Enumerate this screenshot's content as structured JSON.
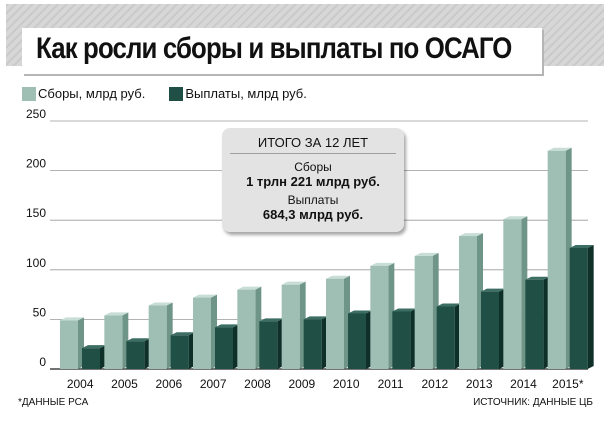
{
  "header": {
    "title": "Как росли сборы и выплаты по ОСАГО"
  },
  "legend": [
    {
      "label": "Сборы, млрд руб.",
      "color": "#9fbfb4"
    },
    {
      "label": "Выплаты, млрд руб.",
      "color": "#1f4f45"
    }
  ],
  "callout": {
    "heading": "ИТОГО ЗА 12 ЛЕТ",
    "label1": "Сборы",
    "value1": "1 трлн 221 млрд руб.",
    "label2": "Выплаты",
    "value2": "684,3 млрд руб."
  },
  "notes": {
    "left": "*ДАННЫЕ РСА",
    "right": "ИСТОЧНИК: ДАННЫЕ ЦБ"
  },
  "chart_data": {
    "type": "bar",
    "categories": [
      "2004",
      "2005",
      "2006",
      "2007",
      "2008",
      "2009",
      "2010",
      "2011",
      "2012",
      "2013",
      "2014",
      "2015*"
    ],
    "series": [
      {
        "name": "Сборы, млрд руб.",
        "values": [
          49,
          54,
          64,
          72,
          80,
          85,
          91,
          104,
          114,
          134,
          151,
          220
        ],
        "color": "#9fbfb4"
      },
      {
        "name": "Выплаты, млрд руб.",
        "values": [
          21,
          28,
          34,
          42,
          48,
          50,
          56,
          58,
          63,
          78,
          90,
          122
        ],
        "color": "#1f4f45"
      }
    ],
    "title": "Как росли сборы и выплаты по ОСАГО",
    "xlabel": "",
    "ylabel": "",
    "ylim": [
      0,
      250
    ],
    "yticks": [
      0,
      50,
      100,
      150,
      200,
      250
    ],
    "grid": true
  }
}
